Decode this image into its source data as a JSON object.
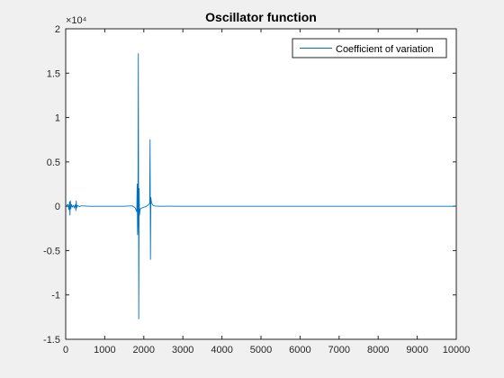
{
  "chart_data": {
    "type": "line",
    "title": "Oscillator function",
    "xlabel": "",
    "ylabel": "",
    "xlim": [
      0,
      10000
    ],
    "ylim": [
      -15000,
      20000
    ],
    "x_ticks": [
      0,
      1000,
      2000,
      3000,
      4000,
      5000,
      6000,
      7000,
      8000,
      9000,
      10000
    ],
    "x_tick_labels": [
      "0",
      "1000",
      "2000",
      "3000",
      "4000",
      "5000",
      "6000",
      "7000",
      "8000",
      "9000",
      "10000"
    ],
    "y_ticks": [
      -15000,
      -10000,
      -5000,
      0,
      5000,
      10000,
      15000,
      20000
    ],
    "y_tick_labels": [
      "-1.5",
      "-1",
      "-0.5",
      "0",
      "0.5",
      "1",
      "1.5",
      "2"
    ],
    "y_exponent_label": "×10⁴",
    "grid": false,
    "legend_position": "top-right",
    "series": [
      {
        "name": "Coefficient of variation",
        "color": "#0072BD",
        "x": [
          0,
          60,
          80,
          100,
          110,
          120,
          130,
          150,
          170,
          200,
          220,
          250,
          260,
          270,
          280,
          300,
          350,
          400,
          600,
          1000,
          1500,
          1700,
          1750,
          1780,
          1800,
          1820,
          1830,
          1840,
          1850,
          1860,
          1870,
          1880,
          1890,
          1900,
          1910,
          1950,
          2000,
          2050,
          2100,
          2150,
          2160,
          2170,
          2180,
          2190,
          2200,
          2220,
          2240,
          2260,
          2300,
          2400,
          2600,
          3000,
          4000,
          5000,
          6000,
          7000,
          8000,
          9000,
          10000
        ],
        "y": [
          0,
          200,
          -400,
          500,
          -1000,
          600,
          -300,
          200,
          -100,
          100,
          -200,
          200,
          -500,
          600,
          -200,
          100,
          -50,
          50,
          0,
          0,
          0,
          50,
          -100,
          -200,
          -400,
          -600,
          2500,
          -3200,
          -1500,
          17200,
          -12700,
          2000,
          -1000,
          -600,
          -300,
          -200,
          -100,
          -50,
          100,
          300,
          7500,
          -6000,
          1000,
          600,
          400,
          200,
          100,
          50,
          20,
          0,
          10,
          0,
          0,
          0,
          0,
          0,
          0,
          0,
          0
        ]
      }
    ]
  }
}
